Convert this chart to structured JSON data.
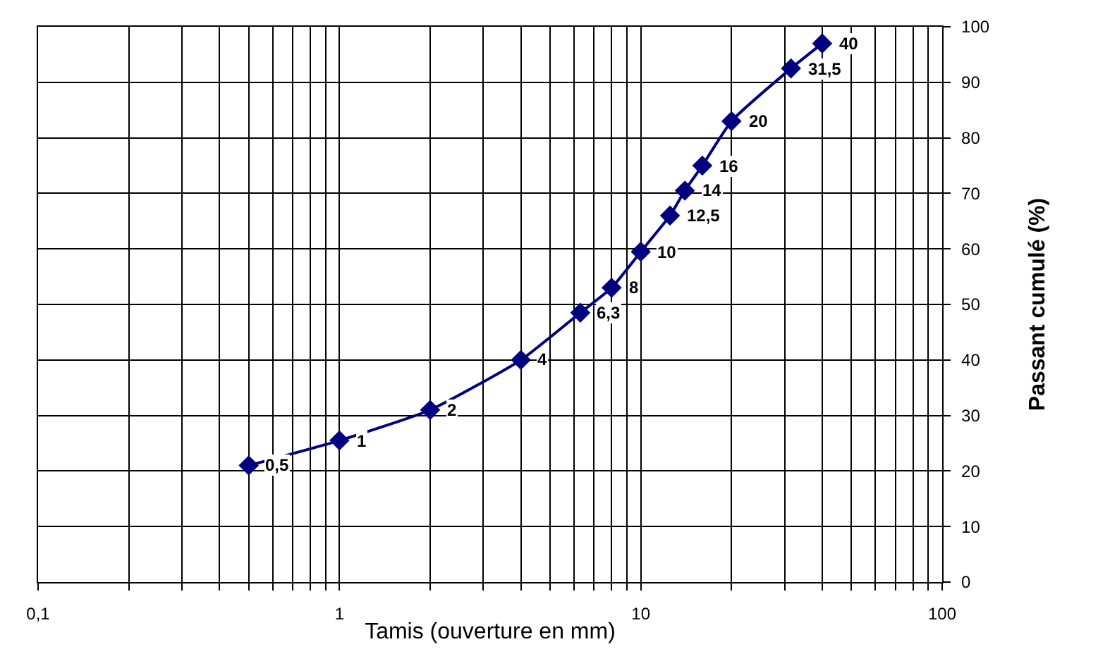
{
  "chart_data": {
    "type": "line",
    "xlabel": "Tamis (ouverture en mm)",
    "ylabel": "Passant cumulé (%)",
    "x": [
      0.5,
      1,
      2,
      4,
      6.3,
      8,
      10,
      12.5,
      14,
      16,
      20,
      31.5,
      40
    ],
    "series": [
      {
        "color": "#000080",
        "values": [
          21,
          25.5,
          31,
          40,
          48.5,
          53,
          59.5,
          66,
          70.5,
          75,
          83,
          92.5,
          97
        ]
      }
    ],
    "xlim": [
      0.1,
      100
    ],
    "xticks": [
      {
        "value": 0.1,
        "label": "0,1"
      },
      {
        "value": 0.2,
        "label": null
      },
      {
        "value": 0.3,
        "label": null
      },
      {
        "value": 0.4,
        "label": null
      },
      {
        "value": 0.5,
        "label": null
      },
      {
        "value": 0.6,
        "label": null
      },
      {
        "value": 0.7,
        "label": null
      },
      {
        "value": 0.8,
        "label": null
      },
      {
        "value": 0.9,
        "label": null
      },
      1,
      {
        "value": 2,
        "label": null
      },
      {
        "value": 3,
        "label": null
      },
      {
        "value": 4,
        "label": null
      },
      {
        "value": 5,
        "label": null
      },
      {
        "value": 6,
        "label": null
      },
      {
        "value": 7,
        "label": null
      },
      {
        "value": 8,
        "label": null
      },
      {
        "value": 9,
        "label": null
      },
      10,
      {
        "value": 20,
        "label": null
      },
      {
        "value": 30,
        "label": null
      },
      {
        "value": 40,
        "label": null
      },
      {
        "value": 50,
        "label": null
      },
      {
        "value": 60,
        "label": null
      },
      {
        "value": 70,
        "label": null
      },
      {
        "value": 80,
        "label": null
      },
      {
        "value": 90,
        "label": null
      },
      100
    ],
    "ylim": [
      0,
      100
    ],
    "yticks": [
      0,
      10,
      20,
      30,
      40,
      50,
      60,
      70,
      80,
      90,
      100
    ],
    "log": "x",
    "grid": true,
    "marker": "diamond",
    "line_style": "solid",
    "annotations": [
      {
        "text": "0,5",
        "x": 0.5,
        "y": 21
      },
      {
        "text": "1",
        "x": 1,
        "y": 25.5
      },
      {
        "text": "2",
        "x": 2,
        "y": 31
      },
      {
        "text": "4",
        "x": 4,
        "y": 40
      },
      {
        "text": "6,3",
        "x": 6.3,
        "y": 48.5
      },
      {
        "text": "8",
        "x": 8,
        "y": 53
      },
      {
        "text": "10",
        "x": 10,
        "y": 59.5
      },
      {
        "text": "12,5",
        "x": 12.5,
        "y": 66
      },
      {
        "text": "14",
        "x": 14,
        "y": 70.5
      },
      {
        "text": "16",
        "x": 16,
        "y": 75
      },
      {
        "text": "20",
        "x": 20,
        "y": 83
      },
      {
        "text": "31,5",
        "x": 31.5,
        "y": 92.5
      },
      {
        "text": "40",
        "x": 40,
        "y": 97
      }
    ]
  }
}
